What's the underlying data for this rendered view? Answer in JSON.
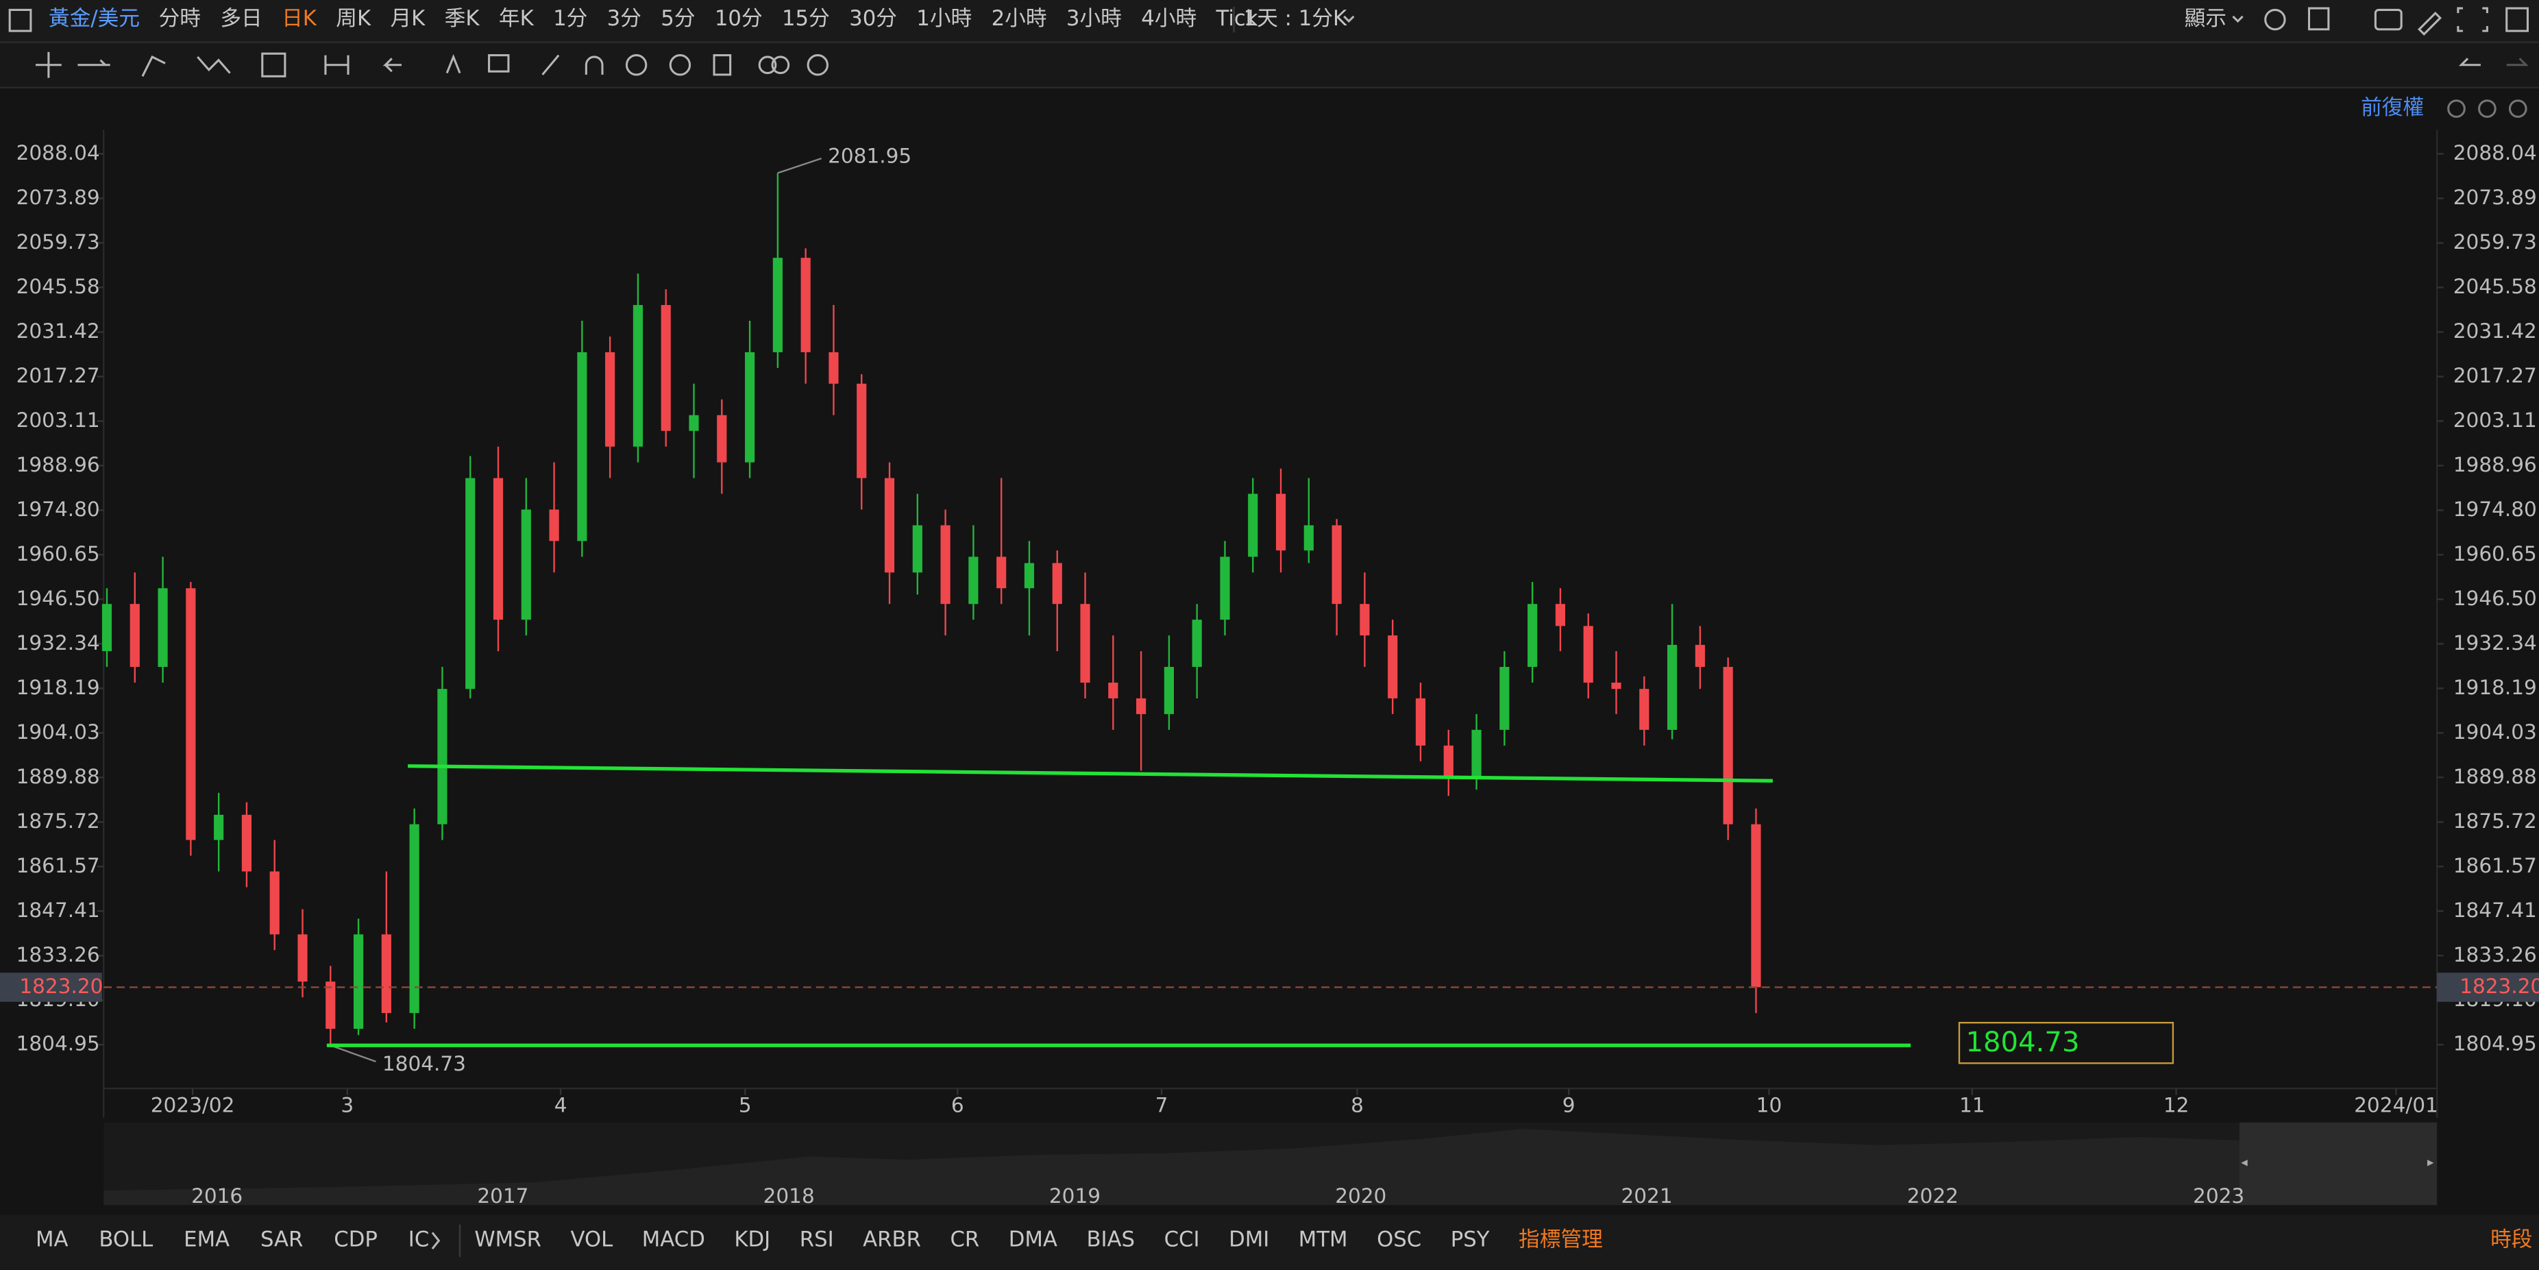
{
  "toolbar": {
    "symbol": "黃金/美元",
    "periods": [
      "分時",
      "多日",
      "日K",
      "周K",
      "月K",
      "季K",
      "年K",
      "1分",
      "3分",
      "5分",
      "10分",
      "15分",
      "30分",
      "1小時",
      "2小時",
      "3小時",
      "4小時",
      "Tick"
    ],
    "active_period": 2,
    "range_selector": "1天 : 1分K",
    "display_button": "顯示"
  },
  "adjust_mode": "前復權",
  "chart_data": {
    "type": "candlestick",
    "x": [
      0,
      3,
      6,
      9,
      12,
      15,
      18,
      21,
      24,
      27,
      30,
      33,
      36,
      39,
      42,
      45,
      48,
      51,
      54,
      57,
      60,
      63,
      66,
      69,
      72,
      75,
      78,
      81,
      84,
      87,
      90,
      93,
      96,
      99,
      102,
      105,
      108,
      111,
      114,
      117,
      120,
      123,
      126,
      129,
      132,
      135,
      138,
      141,
      144,
      147,
      150,
      153,
      156,
      159,
      162,
      165,
      168,
      171,
      174,
      177
    ],
    "open": [
      1930,
      1945,
      1925,
      1950,
      1870,
      1878,
      1860,
      1840,
      1825,
      1810,
      1840,
      1815,
      1875,
      1918,
      1985,
      1940,
      1975,
      1965,
      2025,
      1995,
      2040,
      2000,
      2005,
      1990,
      2025,
      2055,
      2025,
      2015,
      1985,
      1955,
      1970,
      1945,
      1960,
      1950,
      1958,
      1945,
      1920,
      1915,
      1910,
      1925,
      1940,
      1960,
      1980,
      1962,
      1970,
      1945,
      1935,
      1915,
      1900,
      1890,
      1905,
      1925,
      1945,
      1938,
      1920,
      1918,
      1905,
      1932,
      1925,
      1875
    ],
    "high": [
      1950,
      1955,
      1960,
      1952,
      1885,
      1882,
      1870,
      1848,
      1830,
      1845,
      1860,
      1880,
      1925,
      1992,
      1995,
      1985,
      1990,
      2035,
      2030,
      2050,
      2045,
      2015,
      2010,
      2035,
      2081.95,
      2058,
      2040,
      2018,
      1990,
      1980,
      1975,
      1970,
      1985,
      1965,
      1962,
      1955,
      1935,
      1930,
      1935,
      1945,
      1965,
      1985,
      1988,
      1985,
      1972,
      1955,
      1940,
      1920,
      1905,
      1910,
      1930,
      1952,
      1950,
      1942,
      1930,
      1922,
      1945,
      1938,
      1928,
      1880
    ],
    "low": [
      1925,
      1920,
      1920,
      1865,
      1860,
      1855,
      1835,
      1820,
      1804.73,
      1808,
      1812,
      1810,
      1870,
      1915,
      1930,
      1935,
      1955,
      1960,
      1985,
      1990,
      1995,
      1985,
      1980,
      1985,
      2020,
      2015,
      2005,
      1975,
      1945,
      1948,
      1935,
      1940,
      1945,
      1935,
      1930,
      1915,
      1905,
      1892,
      1905,
      1915,
      1935,
      1955,
      1955,
      1958,
      1935,
      1925,
      1910,
      1895,
      1884,
      1886,
      1900,
      1920,
      1930,
      1915,
      1910,
      1900,
      1902,
      1918,
      1870,
      1815
    ],
    "close": [
      1945,
      1925,
      1950,
      1870,
      1878,
      1860,
      1840,
      1825,
      1810,
      1840,
      1815,
      1875,
      1918,
      1985,
      1940,
      1975,
      1965,
      2025,
      1995,
      2040,
      2000,
      2005,
      1990,
      2025,
      2055,
      2025,
      2015,
      1985,
      1955,
      1970,
      1945,
      1960,
      1950,
      1958,
      1945,
      1920,
      1915,
      1910,
      1925,
      1940,
      1960,
      1980,
      1962,
      1970,
      1945,
      1935,
      1915,
      1900,
      1890,
      1905,
      1925,
      1945,
      1938,
      1920,
      1918,
      1905,
      1932,
      1925,
      1875,
      1823.2
    ],
    "up_color": "#22b83c",
    "down_color": "#f0474d",
    "xlim": [
      -0.35,
      250.09
    ],
    "xticks": [
      {
        "value": 9.2,
        "label": "2023/02"
      },
      {
        "value": 25.8,
        "label": "3"
      },
      {
        "value": 48.7,
        "label": "4"
      },
      {
        "value": 68.5,
        "label": "5"
      },
      {
        "value": 91.3,
        "label": "6"
      },
      {
        "value": 113.2,
        "label": "7"
      },
      {
        "value": 134.2,
        "label": "8"
      },
      {
        "value": 156.9,
        "label": "9"
      },
      {
        "value": 178.4,
        "label": "10"
      },
      {
        "value": 200.2,
        "label": "11"
      },
      {
        "value": 222.1,
        "label": "12"
      },
      {
        "value": 245.7,
        "label": "2024/01"
      }
    ],
    "ylim": [
      1793.1,
      2095.7
    ],
    "yticks": [
      2088.04,
      2073.89,
      2059.73,
      2045.58,
      2031.42,
      2017.27,
      2003.11,
      1988.96,
      {
        "value": 1974.8,
        "label": "1974.80"
      },
      1960.65,
      {
        "value": 1946.5,
        "label": "1946.50"
      },
      1932.34,
      1918.19,
      1904.03,
      1889.88,
      1875.72,
      1861.57,
      1847.41,
      1833.26,
      {
        "value": 1819.1,
        "label": "1819.10"
      },
      1804.95
    ],
    "last_price": {
      "value": 1823.2,
      "label": "1823.20"
    },
    "trendlines": [
      {
        "color": "#22e336",
        "x": [
          32.3,
          178.8
        ],
        "y": [
          1893.5,
          1888.8
        ]
      },
      {
        "color": "#22e336",
        "x": [
          23.6,
          193.6
        ],
        "y": [
          1804.73,
          1804.73
        ]
      }
    ]
  },
  "navigator": {
    "years": [
      "2016",
      "2017",
      "2018",
      "2019",
      "2020",
      "2021",
      "2022",
      "2023"
    ]
  },
  "indicators": {
    "main": [
      "MA",
      "BOLL",
      "EMA",
      "SAR",
      "CDP",
      "IC"
    ],
    "sub": [
      "WMSR",
      "VOL",
      "MACD",
      "KDJ",
      "RSI",
      "ARBR",
      "CR",
      "DMA",
      "BIAS",
      "CCI",
      "DMI",
      "MTM",
      "OSC",
      "PSY"
    ],
    "manage": "指標管理",
    "session": "時段"
  }
}
